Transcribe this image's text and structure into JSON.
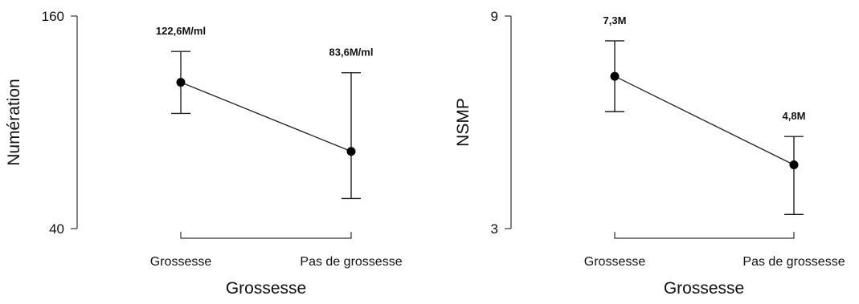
{
  "chart_data": [
    {
      "type": "line",
      "title": "",
      "xlabel": "Grossesse",
      "ylabel": "Numération",
      "ylim": [
        40,
        160
      ],
      "yticks": [
        "160",
        "40"
      ],
      "ytick_values": [
        160,
        40
      ],
      "categories": [
        "Grossesse",
        "Pas de grossesse"
      ],
      "series": [
        {
          "values": [
            122.6,
            83.6
          ],
          "error_low": [
            105,
            57
          ],
          "error_high": [
            140,
            128
          ],
          "labels": [
            "122,6M/ml",
            "83,6M/ml"
          ]
        }
      ],
      "grid": false,
      "legend": "none"
    },
    {
      "type": "line",
      "title": "",
      "xlabel": "Grossesse",
      "ylabel": "NSMP",
      "ylim": [
        3,
        9
      ],
      "yticks": [
        "9",
        "3"
      ],
      "ytick_values": [
        9,
        3
      ],
      "categories": [
        "Grossesse",
        "Pas de grossesse"
      ],
      "series": [
        {
          "values": [
            7.3,
            4.8
          ],
          "error_low": [
            6.3,
            3.4
          ],
          "error_high": [
            8.3,
            5.6
          ],
          "labels": [
            "7,3M",
            "4,8M"
          ]
        }
      ],
      "grid": false,
      "legend": "none"
    }
  ]
}
